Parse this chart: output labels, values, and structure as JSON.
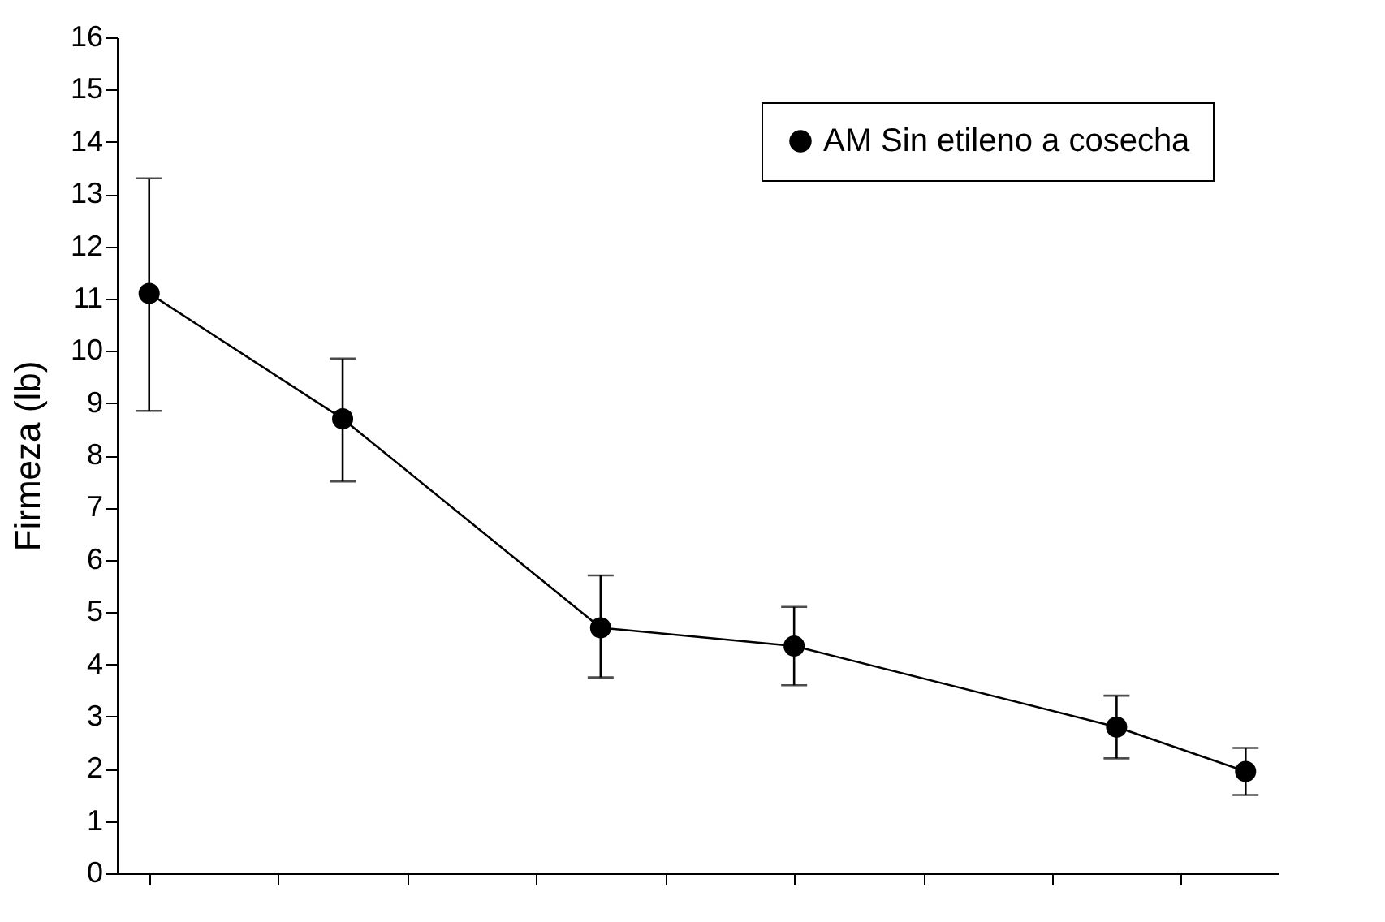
{
  "chart_data": {
    "type": "line",
    "ylabel": "Firmeza (lb)",
    "categories": [
      null,
      null,
      null,
      null,
      null,
      null,
      null,
      null,
      null,
      null,
      null,
      null,
      null,
      null,
      null,
      null,
      null,
      null
    ],
    "series": [
      {
        "name": "AM Sin etileno a cosecha",
        "color": "#000000",
        "values": [
          11.1,
          null,
          null,
          8.7,
          null,
          null,
          null,
          4.7,
          null,
          null,
          4.35,
          null,
          null,
          null,
          null,
          2.8,
          null,
          1.95
        ],
        "errors": [
          [
            8.85,
            13.3
          ],
          null,
          null,
          [
            7.5,
            9.85
          ],
          null,
          null,
          null,
          [
            3.75,
            5.7
          ],
          null,
          null,
          [
            3.6,
            5.1
          ],
          null,
          null,
          null,
          null,
          [
            2.2,
            3.4
          ],
          null,
          [
            1.5,
            2.4
          ]
        ]
      }
    ],
    "ylim": [
      0,
      16
    ],
    "yticks": [
      0,
      1,
      2,
      3,
      4,
      5,
      6,
      7,
      8,
      9,
      10,
      11,
      12,
      13,
      14,
      15,
      16
    ],
    "tick_labels": "y",
    "grid": false,
    "legend": "top right",
    "marker": "circle",
    "line_style": "solid"
  }
}
